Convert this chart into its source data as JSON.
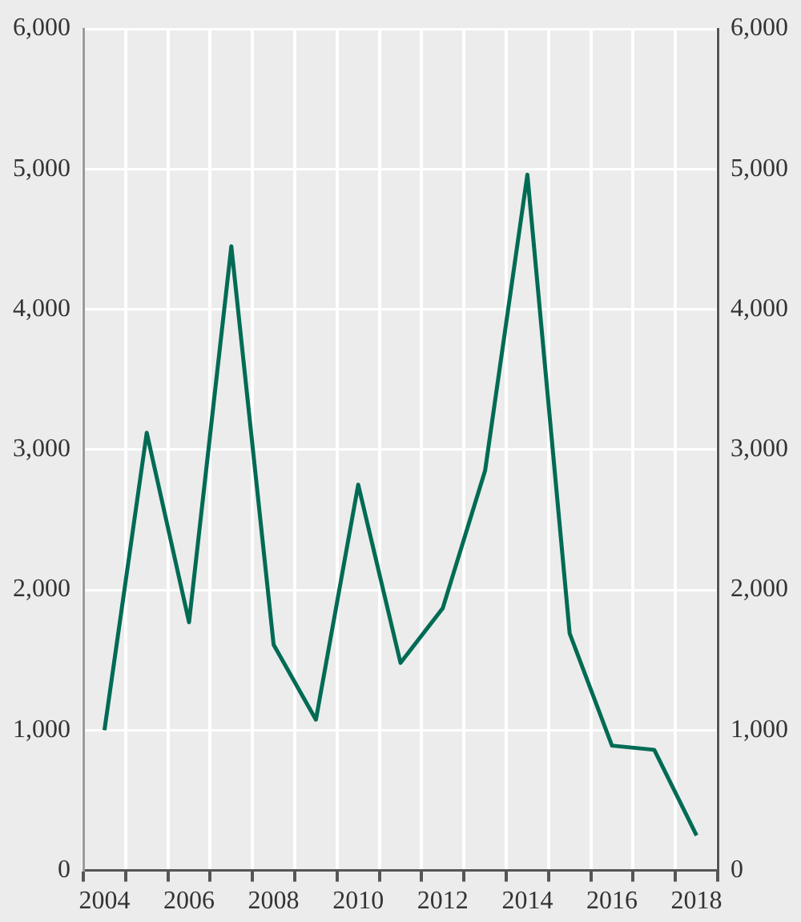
{
  "chart_data": {
    "type": "line",
    "categories": [
      "2004",
      null,
      "2006",
      null,
      "2008",
      null,
      "2010",
      null,
      "2012",
      null,
      "2014",
      null,
      "2016",
      null,
      "2018"
    ],
    "series": [
      {
        "color": "#006b54",
        "values": [
          1000,
          3120,
          1770,
          4450,
          1610,
          1075,
          2750,
          1480,
          1870,
          2850,
          4960,
          1690,
          890,
          860,
          250
        ]
      }
    ],
    "ylim": [
      0,
      6000
    ],
    "yticks": [
      {
        "value": 0,
        "label": "0"
      },
      {
        "value": 1000,
        "label": "1,000"
      },
      {
        "value": 2000,
        "label": "2,000"
      },
      {
        "value": 3000,
        "label": "3,000"
      },
      {
        "value": 4000,
        "label": "4,000"
      },
      {
        "value": 5000,
        "label": "5,000"
      },
      {
        "value": 6000,
        "label": "6,000"
      }
    ],
    "y2lim": [
      0,
      6000
    ],
    "y2ticks": [
      {
        "value": 0,
        "label": "0"
      },
      {
        "value": 1000,
        "label": "1,000"
      },
      {
        "value": 2000,
        "label": "2,000"
      },
      {
        "value": 3000,
        "label": "3,000"
      },
      {
        "value": 4000,
        "label": "4,000"
      },
      {
        "value": 5000,
        "label": "5,000"
      },
      {
        "value": 6000,
        "label": "6,000"
      }
    ],
    "grid": true,
    "marker": "none",
    "line_style": "solid"
  }
}
